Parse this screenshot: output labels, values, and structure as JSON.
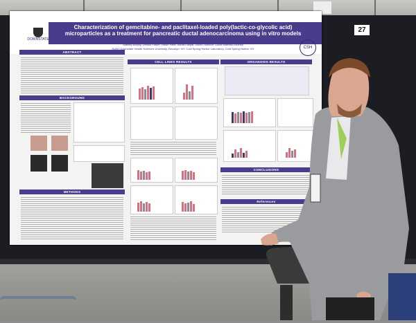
{
  "booth_number": "27",
  "poster": {
    "logo_left_text": "DOWNSTATE",
    "title": "Characterization of gemcitabine- and paclitaxel-loaded poly(lactic-co-glycolic acid) microparticles as a treatment for pancreatic ductal adenocarcinoma using in vitro models",
    "authors": "Stanley Borysy, Dennis Pieper, Harsh Patel, Ashish Nepal, David Tuveson, Laura Martello-Rooney",
    "affiliations": "SUNY Downstate Health Sciences University, Brooklyn, NY; Cold Spring Harbor Laboratory, Cold Spring Harbor, NY",
    "logo_right_text": "CSH",
    "sections": {
      "abstract": "ABSTRACT",
      "background": "BACKGROUND",
      "methods": "METHODS",
      "cell_lines_results": "CELL LINES RESULTS",
      "organoids_results": "ORGANOIDS RESULTS",
      "conclusions": "CONCLUSIONS",
      "references": "References"
    }
  },
  "colors": {
    "accent": "#4a3b8c",
    "bar_pink": "#d9707f",
    "bar_gray": "#8b8b95",
    "bar_dark": "#3d3a6a"
  }
}
